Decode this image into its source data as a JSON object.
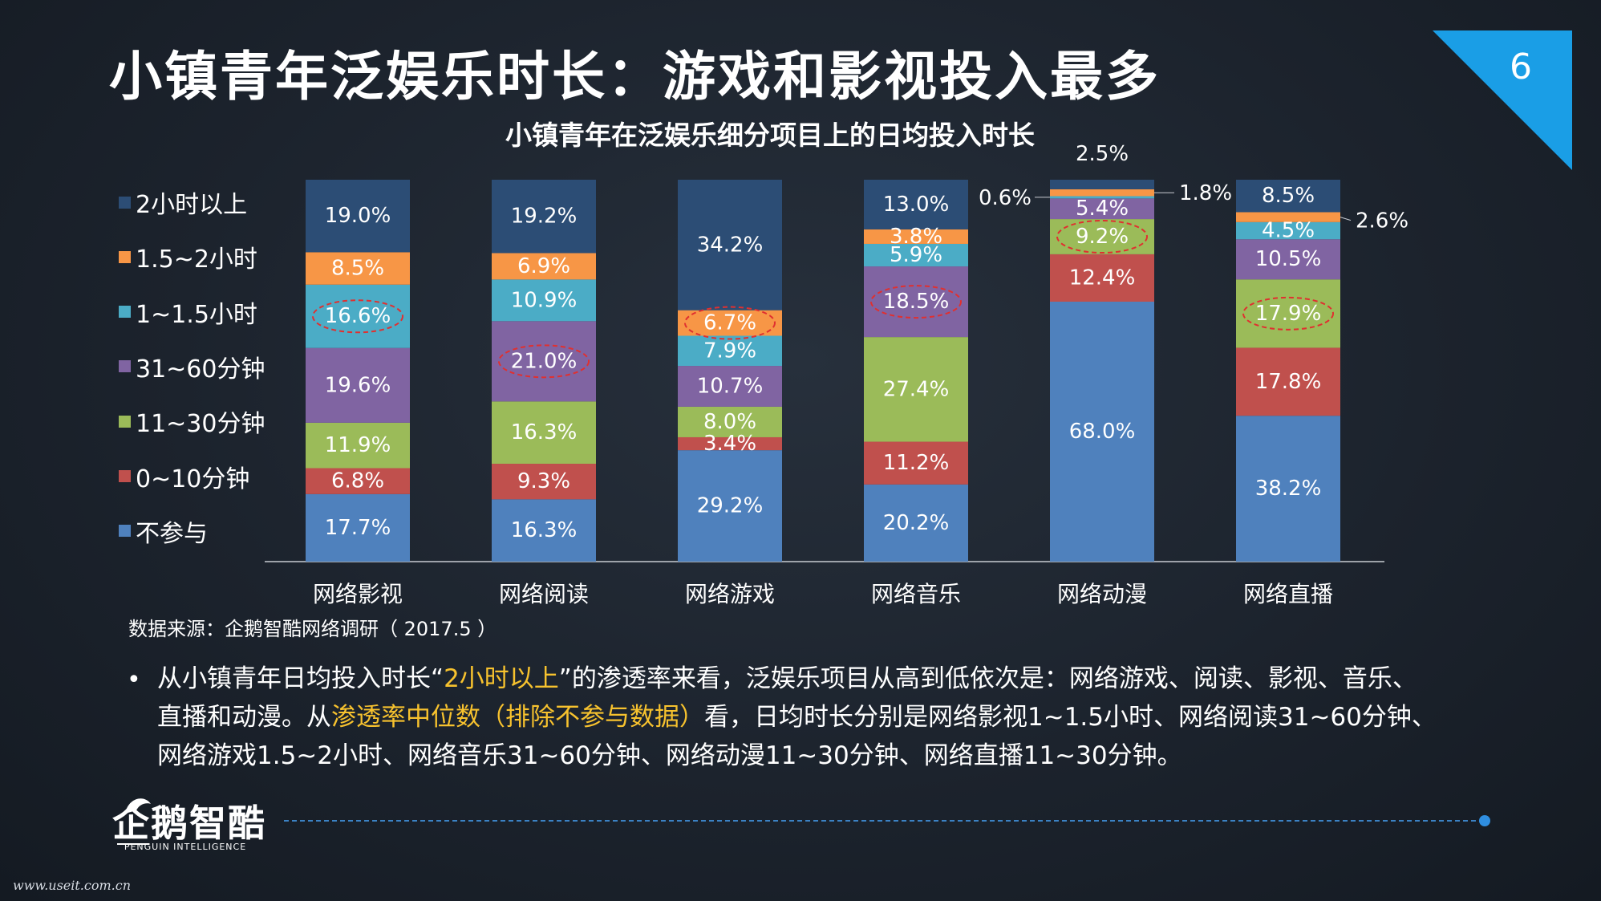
{
  "page": {
    "title": "小镇青年泛娱乐时长：游戏和影视投入最多",
    "page_number": "6",
    "source": "数据来源：企鹅智酷网络调研（ 2017.5 ）",
    "bullet": {
      "t1": "从小镇青年日均投入时长“",
      "h1": "2小时以上",
      "t2": "”的渗透率来看，泛娱乐项目从高到低依次是：网络游戏、阅读、影视、音乐、直播和动漫。从",
      "h2": "渗透率中位数（排除不参与数据）",
      "t3": "看，日均时长分别是网络影视1~1.5小时、网络阅读31~60分钟、网络游戏1.5~2小时、网络音乐31~60分钟、网络动漫11~30分钟、网络直播11~30分钟。"
    },
    "logo": {
      "text": "企鹅智酷",
      "subtitle": "PENGUIN INTELLIGENCE"
    },
    "watermark": "www.useit.com.cn"
  },
  "colors": {
    "accent": "#1a9ee6",
    "highlight_text": "#f7c22e",
    "circle": "#e03030"
  },
  "chart_data": {
    "type": "bar",
    "stacked": true,
    "title": "小镇青年在泛娱乐细分项目上的日均投入时长",
    "categories": [
      "网络影视",
      "网络阅读",
      "网络游戏",
      "网络音乐",
      "网络动漫",
      "网络直播"
    ],
    "series": [
      {
        "name": "不参与",
        "color": "#4f81bd",
        "values": [
          17.7,
          16.3,
          29.2,
          20.2,
          68.0,
          38.2
        ]
      },
      {
        "name": "0~10分钟",
        "color": "#c0504d",
        "values": [
          6.8,
          9.3,
          3.4,
          11.2,
          12.4,
          17.8
        ]
      },
      {
        "name": "11~30分钟",
        "color": "#9bbb59",
        "values": [
          11.9,
          16.3,
          8.0,
          27.4,
          9.2,
          17.9
        ]
      },
      {
        "name": "31~60分钟",
        "color": "#8064a2",
        "values": [
          19.6,
          21.0,
          10.7,
          18.5,
          5.4,
          10.5
        ]
      },
      {
        "name": "1~1.5小时",
        "color": "#4bacc6",
        "values": [
          16.6,
          10.9,
          7.9,
          5.9,
          0.6,
          4.5
        ]
      },
      {
        "name": "1.5~2小时",
        "color": "#f79646",
        "values": [
          8.5,
          6.9,
          6.7,
          3.8,
          1.8,
          2.6
        ]
      },
      {
        "name": "2小时以上",
        "color": "#2c4d75",
        "values": [
          19.0,
          19.2,
          34.2,
          13.0,
          2.5,
          8.5
        ]
      }
    ],
    "value_labels": [
      [
        "17.7%",
        "16.3%",
        "29.2%",
        "20.2%",
        "68.0%",
        "38.2%"
      ],
      [
        "6.8%",
        "9.3%",
        "3.4%",
        "11.2%",
        "12.4%",
        "17.8%"
      ],
      [
        "11.9%",
        "16.3%",
        "8.0%",
        "27.4%",
        "9.2%",
        "17.9%"
      ],
      [
        "19.6%",
        "21.0%",
        "10.7%",
        "18.5%",
        "5.4%",
        "10.5%"
      ],
      [
        "16.6%",
        "10.9%",
        "7.9%",
        "5.9%",
        "0.6%",
        "4.5%"
      ],
      [
        "8.5%",
        "6.9%",
        "6.7%",
        "3.8%",
        "1.8%",
        "2.6%"
      ],
      [
        "19.0%",
        "19.2%",
        "34.2%",
        "13.0%",
        "2.5%",
        "8.5%"
      ]
    ],
    "highlighted_median": [
      {
        "category": "网络影视",
        "series": "1~1.5小时"
      },
      {
        "category": "网络阅读",
        "series": "31~60分钟"
      },
      {
        "category": "网络游戏",
        "series": "1.5~2小时"
      },
      {
        "category": "网络音乐",
        "series": "31~60分钟"
      },
      {
        "category": "网络动漫",
        "series": "11~30分钟"
      },
      {
        "category": "网络直播",
        "series": "11~30分钟"
      }
    ],
    "ylim": [
      0,
      100
    ],
    "grid": false,
    "legend": "left"
  }
}
